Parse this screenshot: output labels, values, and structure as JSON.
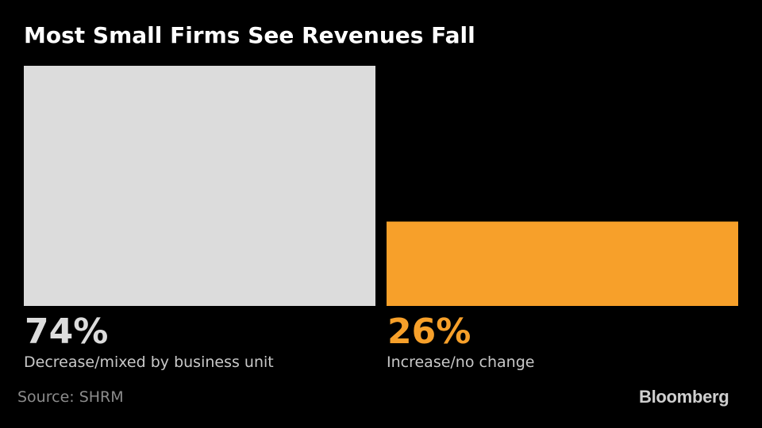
{
  "chart_data": {
    "type": "bar",
    "title": "Most Small Firms See Revenues Fall",
    "categories": [
      "Decrease/mixed by business unit",
      "Increase/no change"
    ],
    "values": [
      74,
      26
    ],
    "value_labels": [
      "74%",
      "26%"
    ],
    "colors": [
      "#dcdcdc",
      "#f7a02a"
    ],
    "ylim": [
      0,
      74
    ],
    "grid": false,
    "legend": "none"
  },
  "footer": {
    "source": "Source: SHRM",
    "brand": "Bloomberg"
  }
}
